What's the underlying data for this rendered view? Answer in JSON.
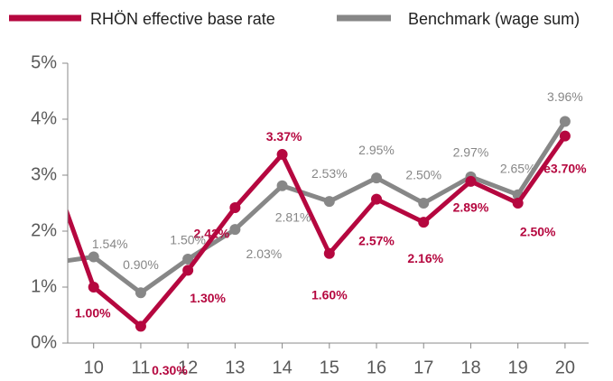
{
  "chart_data": {
    "type": "line",
    "x": [
      9,
      10,
      11,
      12,
      13,
      14,
      15,
      16,
      17,
      18,
      19,
      20
    ],
    "xlim": [
      9.45,
      20.5
    ],
    "xticks": [
      10,
      11,
      12,
      13,
      14,
      15,
      16,
      17,
      18,
      19,
      20
    ],
    "ylim": [
      0,
      5
    ],
    "yticks": [
      {
        "value": 0,
        "label": "0%"
      },
      {
        "value": 1,
        "label": "1%"
      },
      {
        "value": 2,
        "label": "2%"
      },
      {
        "value": 3,
        "label": "3%"
      },
      {
        "value": 4,
        "label": "4%"
      },
      {
        "value": 5,
        "label": "5%"
      }
    ],
    "legend": "top",
    "series": [
      {
        "name": "RHÖN effective base rate",
        "color": "#b5073f",
        "values": [
          3.35,
          1.0,
          0.3,
          1.3,
          2.42,
          3.37,
          1.6,
          2.57,
          2.16,
          2.89,
          2.5,
          3.7
        ],
        "value_labels": [
          null,
          "1.00%",
          "0.30%",
          "1.30%",
          "2.42%",
          "3.37%",
          "1.60%",
          "2.57%",
          "2.16%",
          "2.89%",
          "2.50%",
          "e3.70%"
        ]
      },
      {
        "name": "Benchmark (wage sum)",
        "color": "#878787",
        "values": [
          1.42,
          1.54,
          0.9,
          1.5,
          2.03,
          2.81,
          2.53,
          2.95,
          2.5,
          2.97,
          2.65,
          3.96
        ],
        "value_labels": [
          null,
          "1.54%",
          "0.90%",
          "1.50%",
          "2.03%",
          "2.81%",
          "2.53%",
          "2.95%",
          "2.50%",
          "2.97%",
          "2.65%",
          "3.96%"
        ]
      }
    ]
  }
}
